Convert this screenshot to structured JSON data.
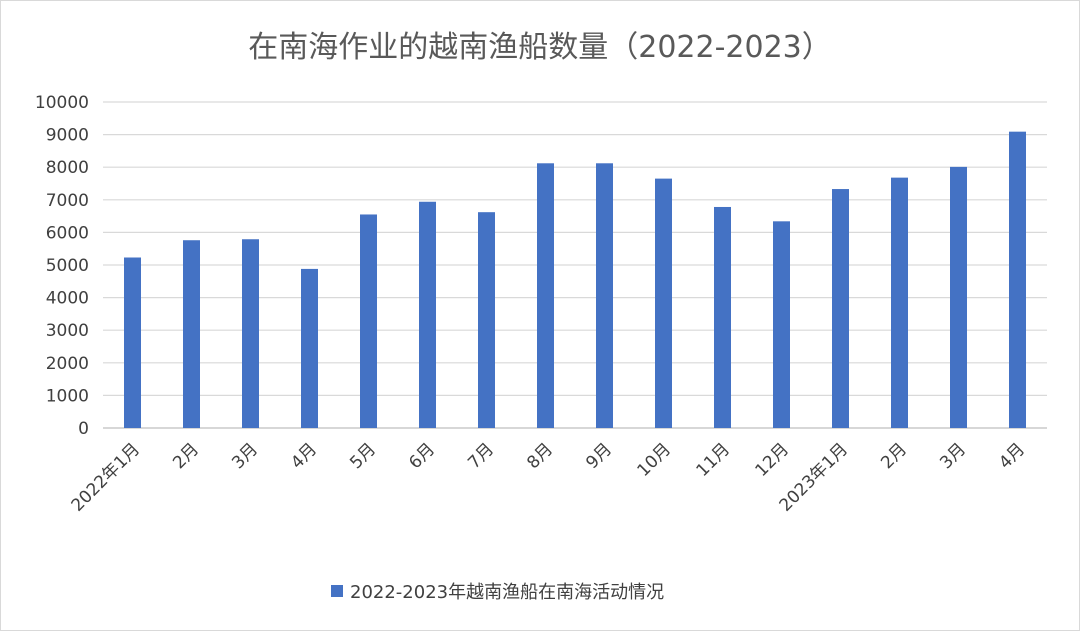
{
  "chart_data": {
    "type": "bar",
    "title": "在南海作业的越南渔船数量（2022-2023）",
    "xlabel": "",
    "ylabel": "",
    "categories": [
      "2022年1月",
      "2月",
      "3月",
      "4月",
      "5月",
      "6月",
      "7月",
      "8月",
      "9月",
      "10月",
      "11月",
      "12月",
      "2023年1月",
      "2月",
      "3月",
      "4月"
    ],
    "series": [
      {
        "name": "2022-2023年越南渔船在南海活动情况",
        "color": "#4472c4",
        "values": [
          5230,
          5760,
          5790,
          4880,
          6550,
          6940,
          6620,
          8120,
          8120,
          7650,
          6780,
          6340,
          7330,
          7680,
          8010,
          9090
        ]
      }
    ],
    "ylim": [
      0,
      10000
    ],
    "yticks": [
      "0",
      "1000",
      "2000",
      "3000",
      "4000",
      "5000",
      "6000",
      "7000",
      "8000",
      "9000",
      "10000"
    ],
    "grid": true,
    "legend_position": "bottom"
  }
}
